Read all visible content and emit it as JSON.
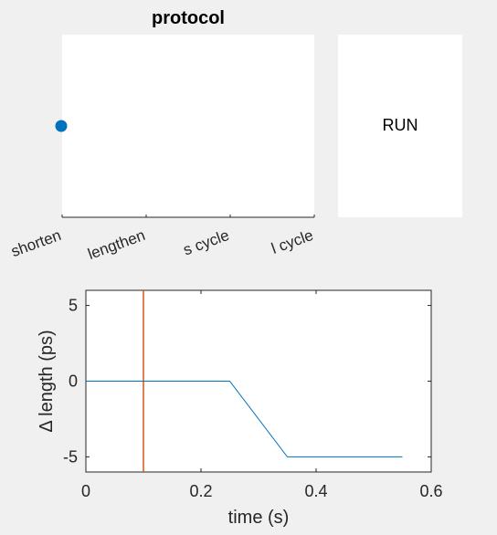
{
  "protocol": {
    "title": "protocol",
    "options": [
      "shorten",
      "lengthen",
      "s cycle",
      "l cycle"
    ],
    "selected_index": 0,
    "marker_color": "#0072bd"
  },
  "run_button": {
    "label": "RUN"
  },
  "chart_data": {
    "type": "line",
    "xlabel": "time (s)",
    "ylabel": "Δ length (ps)",
    "xlim": [
      0,
      0.6
    ],
    "ylim": [
      -6,
      6
    ],
    "xticks": [
      0,
      0.2,
      0.4,
      0.6
    ],
    "xtick_labels": [
      "0",
      "0.2",
      "0.4",
      "0.6"
    ],
    "yticks": [
      5,
      0,
      -5
    ],
    "ytick_labels": [
      "5",
      "0",
      "-5"
    ],
    "grid": false,
    "series": [
      {
        "color": "#0072bd",
        "x": [
          0,
          0.25,
          0.35,
          0.55
        ],
        "y": [
          0,
          0,
          -5,
          -5
        ]
      }
    ],
    "vlines": [
      {
        "x": 0.1,
        "color": "#d95319"
      }
    ]
  }
}
